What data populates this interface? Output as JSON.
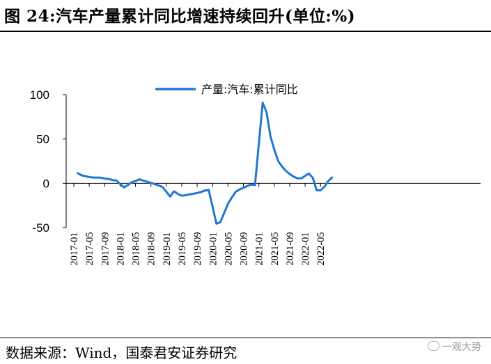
{
  "header": {
    "title": "图 24:汽车产量累计同比增速持续回升(单位:%)"
  },
  "footer": {
    "source": "数据来源：Wind，国泰君安证券研究",
    "watermark": "一观大势",
    "watermark_icon": "wechat-icon"
  },
  "chart_data": {
    "type": "line",
    "title": "",
    "xlabel": "",
    "ylabel": "",
    "ylim": [
      -50,
      100
    ],
    "yticks": [
      -50,
      0,
      50,
      100
    ],
    "xtick_labels": [
      "2017-01",
      "2017-05",
      "2017-09",
      "2018-01",
      "2018-05",
      "2018-09",
      "2019-01",
      "2019-05",
      "2019-09",
      "2020-01",
      "2020-05",
      "2020-09",
      "2021-01",
      "2021-05",
      "2021-09",
      "2022-01",
      "2022-05"
    ],
    "grid": false,
    "legend": {
      "position": "top-center"
    },
    "series": [
      {
        "name": "产量:汽车:累计同比",
        "color": "#1f77d4",
        "x": [
          "2017-02",
          "2017-03",
          "2017-04",
          "2017-05",
          "2017-06",
          "2017-07",
          "2017-08",
          "2017-09",
          "2017-10",
          "2017-11",
          "2017-12",
          "2018-02",
          "2018-03",
          "2018-04",
          "2018-05",
          "2018-06",
          "2018-07",
          "2018-08",
          "2018-09",
          "2018-10",
          "2018-11",
          "2018-12",
          "2019-02",
          "2019-03",
          "2019-04",
          "2019-05",
          "2019-06",
          "2019-07",
          "2019-08",
          "2019-09",
          "2019-10",
          "2019-11",
          "2019-12",
          "2020-02",
          "2020-03",
          "2020-04",
          "2020-05",
          "2020-06",
          "2020-07",
          "2020-08",
          "2020-09",
          "2020-10",
          "2020-11",
          "2020-12",
          "2021-02",
          "2021-03",
          "2021-04",
          "2021-05",
          "2021-06",
          "2021-07",
          "2021-08",
          "2021-09",
          "2021-10",
          "2021-11",
          "2021-12",
          "2022-02",
          "2022-03",
          "2022-04",
          "2022-05",
          "2022-06",
          "2022-07",
          "2022-08"
        ],
        "values": [
          11.5,
          9,
          8,
          7,
          6.5,
          6.5,
          6.3,
          5.3,
          4.8,
          3.8,
          3.2,
          -4.7,
          -2,
          1.2,
          2.5,
          4.5,
          3,
          1.8,
          0.5,
          -1,
          -2.5,
          -4.2,
          -15,
          -9,
          -12,
          -14,
          -13.5,
          -12.5,
          -11.8,
          -11,
          -9.8,
          -8.2,
          -7.5,
          -45.6,
          -44,
          -33.5,
          -23,
          -16,
          -9.5,
          -7,
          -5,
          -3,
          -1.5,
          -2,
          91,
          80,
          53,
          38,
          25,
          19,
          14,
          10.5,
          7.5,
          5.5,
          5.5,
          11,
          6,
          -8,
          -8,
          -4,
          2.5,
          6.5
        ]
      }
    ]
  }
}
